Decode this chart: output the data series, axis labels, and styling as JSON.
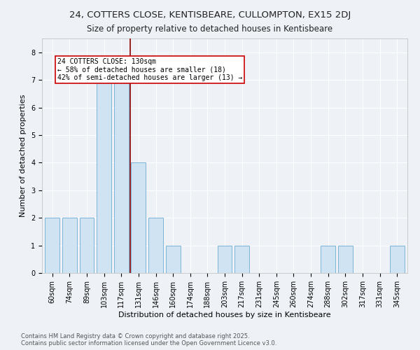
{
  "title1": "24, COTTERS CLOSE, KENTISBEARE, CULLOMPTON, EX15 2DJ",
  "title2": "Size of property relative to detached houses in Kentisbeare",
  "xlabel": "Distribution of detached houses by size in Kentisbeare",
  "ylabel": "Number of detached properties",
  "categories": [
    "60sqm",
    "74sqm",
    "89sqm",
    "103sqm",
    "117sqm",
    "131sqm",
    "146sqm",
    "160sqm",
    "174sqm",
    "188sqm",
    "203sqm",
    "217sqm",
    "231sqm",
    "245sqm",
    "260sqm",
    "274sqm",
    "288sqm",
    "302sqm",
    "317sqm",
    "331sqm",
    "345sqm"
  ],
  "values": [
    2,
    2,
    2,
    7,
    7,
    4,
    2,
    1,
    0,
    0,
    1,
    1,
    0,
    0,
    0,
    0,
    1,
    1,
    0,
    0,
    1
  ],
  "bar_color": "#cfe3f3",
  "bar_edge_color": "#7ab5d8",
  "highlight_line_color": "#8b0000",
  "annotation_text": "24 COTTERS CLOSE: 130sqm\n← 58% of detached houses are smaller (18)\n42% of semi-detached houses are larger (13) →",
  "annotation_box_color": "#ffffff",
  "annotation_box_edge_color": "#cc0000",
  "ylim": [
    0,
    8.5
  ],
  "yticks": [
    0,
    1,
    2,
    3,
    4,
    5,
    6,
    7,
    8
  ],
  "footer_text": "Contains HM Land Registry data © Crown copyright and database right 2025.\nContains public sector information licensed under the Open Government Licence v3.0.",
  "background_color": "#eef2f7",
  "plot_bg_color": "#eef2f7",
  "title1_fontsize": 9.5,
  "title2_fontsize": 8.5,
  "xlabel_fontsize": 8,
  "ylabel_fontsize": 8,
  "tick_fontsize": 7,
  "annotation_fontsize": 7,
  "footer_fontsize": 6
}
